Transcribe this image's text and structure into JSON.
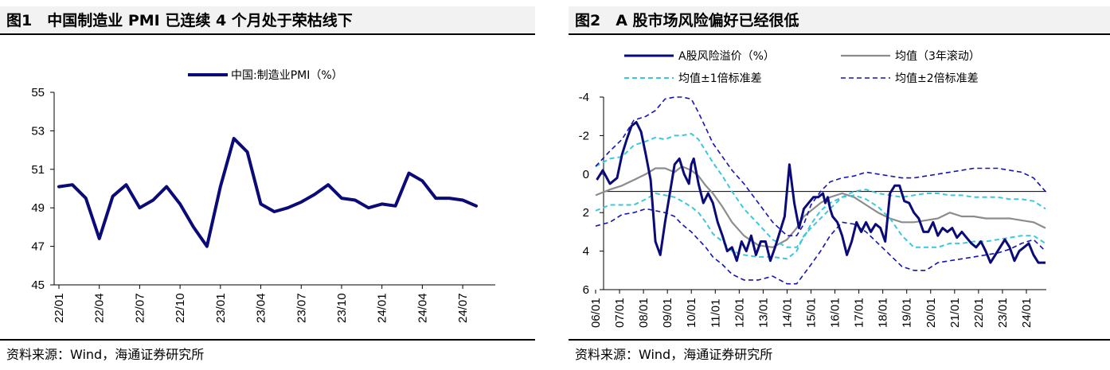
{
  "chart_data": [
    {
      "type": "line",
      "title": "图1　中国制造业 PMI 已连续 4 个月处于荣枯线下",
      "source": "资料来源：Wind，海通证券研究所",
      "legend": [
        "中国:制造业PMI（%）"
      ],
      "ylim": [
        45,
        55
      ],
      "yticks": [
        "55",
        "53",
        "51",
        "49",
        "47",
        "45"
      ],
      "xticks": [
        "22/01",
        "22/04",
        "22/07",
        "22/10",
        "23/01",
        "23/04",
        "23/07",
        "23/10",
        "24/01",
        "24/04",
        "24/07"
      ],
      "series": [
        {
          "name": "中国:制造业PMI（%）",
          "color": "#0a0a78",
          "x": [
            0,
            1,
            2,
            3,
            4,
            5,
            6,
            7,
            8,
            9,
            10,
            11,
            12,
            13,
            14,
            15,
            16,
            17,
            18,
            19,
            20,
            21,
            22,
            23,
            24,
            25,
            26,
            27,
            28,
            29,
            30,
            31
          ],
          "values": [
            50.1,
            50.2,
            49.5,
            47.4,
            49.6,
            50.2,
            49.0,
            49.4,
            50.1,
            49.2,
            48.0,
            47.0,
            50.1,
            52.6,
            51.9,
            49.2,
            48.8,
            49.0,
            49.3,
            49.7,
            50.2,
            49.5,
            49.4,
            49.0,
            49.2,
            49.1,
            50.8,
            50.4,
            49.5,
            49.5,
            49.4,
            49.1
          ]
        }
      ]
    },
    {
      "type": "line",
      "title": "图2　A 股市场风险偏好已经很低",
      "source": "资料来源：Wind，海通证券研究所",
      "ylim": [
        6,
        -4
      ],
      "yticks": [
        "-4",
        "-2",
        "0",
        "2",
        "4",
        "6"
      ],
      "xticks": [
        "06/01",
        "07/01",
        "08/01",
        "09/01",
        "10/01",
        "11/01",
        "12/01",
        "13/01",
        "14/01",
        "15/01",
        "16/01",
        "17/01",
        "18/01",
        "19/01",
        "20/01",
        "21/01",
        "22/01",
        "23/01",
        "24/01"
      ],
      "series": [
        {
          "name": "A股风险溢价（%）",
          "color": "#0a0a78",
          "x": [
            0.05,
            0.3,
            0.6,
            0.9,
            1.1,
            1.3,
            1.5,
            1.7,
            1.9,
            2.1,
            2.3,
            2.5,
            2.7,
            2.9,
            3.1,
            3.3,
            3.5,
            3.7,
            3.9,
            4.0,
            4.1,
            4.3,
            4.5,
            4.7,
            4.9,
            5.1,
            5.3,
            5.5,
            5.7,
            5.9,
            6.1,
            6.3,
            6.5,
            6.7,
            6.9,
            7.1,
            7.3,
            7.5,
            7.7,
            7.9,
            8.1,
            8.3,
            8.5,
            8.7,
            8.9,
            9.1,
            9.3,
            9.5,
            9.6,
            9.7,
            9.8,
            9.9,
            10.1,
            10.3,
            10.5,
            10.7,
            10.9,
            11.1,
            11.3,
            11.5,
            11.7,
            11.9,
            12.1,
            12.3,
            12.5,
            12.7,
            12.9,
            13.1,
            13.3,
            13.5,
            13.7,
            13.9,
            14.1,
            14.3,
            14.5,
            14.7,
            14.9,
            15.1,
            15.3,
            15.5,
            15.7,
            15.9,
            16.1,
            16.3,
            16.5,
            16.7,
            16.9,
            17.1,
            17.3,
            17.5,
            17.7,
            17.9,
            18.1,
            18.3,
            18.5,
            18.8
          ],
          "values": [
            0.3,
            -0.2,
            0.5,
            0.2,
            -1.0,
            -1.8,
            -2.5,
            -2.7,
            -2.2,
            -1.0,
            0.3,
            3.5,
            4.2,
            2.5,
            1.0,
            -0.5,
            -0.8,
            0.0,
            0.5,
            -0.5,
            -0.8,
            0.5,
            1.5,
            1.0,
            1.5,
            2.5,
            3.2,
            4.0,
            3.8,
            4.5,
            3.5,
            4.0,
            3.2,
            4.2,
            3.5,
            3.5,
            4.5,
            3.8,
            3.0,
            2.2,
            -0.5,
            1.5,
            2.8,
            1.8,
            1.5,
            1.2,
            1.2,
            1.0,
            1.5,
            1.2,
            1.8,
            2.2,
            2.5,
            3.2,
            4.2,
            3.5,
            2.5,
            3.0,
            2.5,
            3.0,
            2.6,
            2.8,
            3.5,
            1.0,
            0.6,
            0.6,
            1.4,
            1.5,
            2.0,
            2.3,
            3.0,
            3.0,
            2.5,
            3.2,
            2.8,
            3.0,
            2.8,
            3.3,
            3.0,
            3.3,
            3.6,
            3.8,
            3.5,
            4.0,
            4.6,
            4.2,
            3.8,
            3.4,
            3.8,
            4.5,
            4.0,
            3.8,
            3.6,
            4.2,
            4.6,
            4.6
          ]
        },
        {
          "name": "均值（3年滚动）",
          "color": "#8c8c8c",
          "x": [
            0,
            0.6,
            1.1,
            1.6,
            2.1,
            2.5,
            2.9,
            3.3,
            3.6,
            4.0,
            4.3,
            4.6,
            4.9,
            5.3,
            5.7,
            6.2,
            6.8,
            7.4,
            8.0,
            8.4,
            8.7,
            9.0,
            9.4,
            9.8,
            10.3,
            10.8,
            11.3,
            11.8,
            12.3,
            12.8,
            13.3,
            13.8,
            14.3,
            14.8,
            15.3,
            15.8,
            16.3,
            16.8,
            17.3,
            17.8,
            18.3,
            18.8
          ],
          "values": [
            1.1,
            0.8,
            0.6,
            0.3,
            0.0,
            -0.3,
            -0.3,
            -0.1,
            -0.4,
            -0.2,
            0.1,
            0.6,
            1.0,
            1.7,
            2.5,
            3.2,
            3.7,
            3.8,
            3.4,
            2.8,
            2.2,
            1.9,
            1.5,
            1.2,
            1.0,
            1.2,
            1.6,
            2.0,
            2.3,
            2.5,
            2.5,
            2.4,
            2.3,
            2.0,
            2.2,
            2.2,
            2.3,
            2.3,
            2.3,
            2.4,
            2.5,
            2.8
          ]
        },
        {
          "name": "均值±1倍标准差",
          "color": "#3cc8dc",
          "x": [
            0,
            0.6,
            1.1,
            1.6,
            2.1,
            2.5,
            2.9,
            3.3,
            3.6,
            4.0,
            4.3,
            4.6,
            4.9,
            5.3,
            5.7,
            6.2,
            6.8,
            7.4,
            8.0,
            8.4,
            8.7,
            9.0,
            9.4,
            9.8,
            10.3,
            10.8,
            11.3,
            11.8,
            12.3,
            12.8,
            13.3,
            13.8,
            14.3,
            14.8,
            15.3,
            15.8,
            16.3,
            16.8,
            17.3,
            17.8,
            18.3,
            18.8
          ],
          "values": [
            -0.4,
            -0.8,
            -0.9,
            -1.5,
            -1.7,
            -1.9,
            -1.8,
            -2.0,
            -2.0,
            -2.1,
            -1.8,
            -1.2,
            -0.6,
            0.1,
            0.9,
            1.8,
            2.6,
            3.4,
            3.8,
            3.8,
            3.3,
            2.6,
            1.9,
            1.5,
            1.2,
            0.9,
            0.8,
            1.0,
            1.1,
            1.2,
            1.1,
            1.0,
            1.0,
            1.1,
            1.1,
            1.2,
            1.2,
            1.2,
            1.3,
            1.3,
            1.4,
            1.8
          ]
        },
        {
          "name": "均值±1倍标准差",
          "color": "#3cc8dc",
          "x": [
            0,
            0.6,
            1.1,
            1.6,
            2.1,
            2.5,
            2.9,
            3.3,
            3.6,
            4.0,
            4.3,
            4.6,
            4.9,
            5.3,
            5.7,
            6.2,
            6.8,
            7.4,
            8.0,
            8.4,
            8.7,
            9.0,
            9.4,
            9.8,
            10.3,
            10.8,
            11.3,
            11.8,
            12.3,
            12.8,
            13.3,
            13.8,
            14.3,
            14.8,
            15.3,
            15.8,
            16.3,
            16.8,
            17.3,
            17.8,
            18.3,
            18.8
          ],
          "values": [
            1.9,
            1.6,
            1.6,
            1.6,
            1.3,
            1.0,
            1.1,
            1.2,
            1.4,
            1.7,
            2.0,
            2.5,
            3.1,
            3.5,
            4.0,
            4.2,
            4.3,
            4.3,
            4.4,
            4.0,
            3.2,
            2.8,
            2.3,
            1.8,
            1.2,
            1.1,
            1.3,
            1.7,
            2.3,
            3.2,
            3.8,
            3.8,
            3.8,
            3.6,
            3.6,
            3.5,
            3.5,
            3.4,
            3.3,
            3.2,
            3.2,
            3.6
          ]
        },
        {
          "name": "均值±2倍标准差",
          "color": "#1414b4",
          "x": [
            0,
            0.6,
            1.1,
            1.6,
            2.1,
            2.5,
            2.9,
            3.3,
            3.6,
            4.0,
            4.3,
            4.6,
            4.9,
            5.3,
            5.7,
            6.2,
            6.8,
            7.4,
            8.0,
            8.4,
            8.7,
            9.0,
            9.4,
            9.8,
            10.3,
            10.8,
            11.3,
            11.8,
            12.3,
            12.8,
            13.3,
            13.8,
            14.3,
            14.8,
            15.3,
            15.8,
            16.3,
            16.8,
            17.3,
            17.8,
            18.3,
            18.8
          ],
          "values": [
            -0.4,
            -1.2,
            -1.8,
            -2.8,
            -3.0,
            -3.3,
            -3.9,
            -4.0,
            -4.0,
            -3.9,
            -3.2,
            -2.4,
            -1.6,
            -0.9,
            -0.2,
            0.5,
            1.5,
            2.5,
            3.2,
            3.2,
            2.6,
            1.6,
            0.9,
            0.4,
            0.2,
            0.1,
            -0.1,
            0.0,
            0.1,
            0.2,
            0.2,
            0.1,
            0.0,
            -0.1,
            -0.2,
            -0.3,
            -0.3,
            -0.3,
            -0.2,
            -0.1,
            0.2,
            0.9
          ]
        },
        {
          "name": "均值±2倍标准差",
          "color": "#1414b4",
          "x": [
            0,
            0.6,
            1.1,
            1.6,
            2.1,
            2.5,
            2.9,
            3.3,
            3.6,
            4.0,
            4.3,
            4.6,
            4.9,
            5.3,
            5.7,
            6.2,
            6.8,
            7.4,
            8.0,
            8.4,
            8.7,
            9.0,
            9.4,
            9.8,
            10.3,
            10.8,
            11.3,
            11.8,
            12.3,
            12.8,
            13.3,
            13.8,
            14.3,
            14.8,
            15.3,
            15.8,
            16.3,
            16.8,
            17.3,
            17.8,
            18.3,
            18.8
          ],
          "values": [
            2.7,
            2.5,
            2.1,
            2.0,
            1.8,
            1.9,
            2.0,
            2.2,
            2.6,
            3.0,
            3.4,
            3.8,
            4.3,
            4.7,
            5.2,
            5.5,
            5.5,
            5.3,
            5.7,
            5.7,
            5.2,
            4.7,
            4.0,
            3.2,
            2.5,
            2.6,
            3.0,
            3.6,
            4.2,
            4.8,
            5.0,
            5.0,
            4.6,
            4.5,
            4.4,
            4.3,
            4.2,
            4.1,
            3.9,
            3.6,
            3.4,
            4.0
          ]
        }
      ],
      "legend": [
        "A股风险溢价（%）",
        "均值（3年滚动）",
        "均值±1倍标准差",
        "均值±2倍标准差"
      ],
      "reference_line": 0.9
    }
  ]
}
